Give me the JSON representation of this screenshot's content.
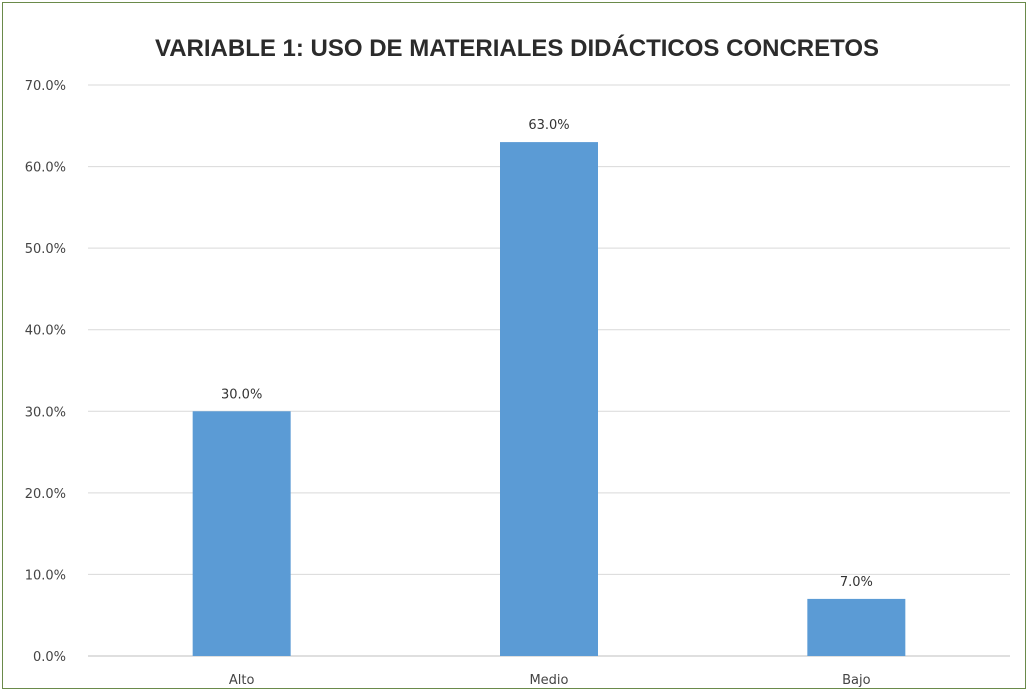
{
  "chart_data": {
    "type": "bar",
    "title": "VARIABLE 1: USO DE MATERIALES DIDÁCTICOS CONCRETOS",
    "xlabel": "",
    "ylabel": "",
    "categories": [
      "Alto",
      "Medio",
      "Bajo"
    ],
    "values": [
      30.0,
      63.0,
      7.0
    ],
    "data_labels": [
      "30.0%",
      "63.0%",
      "7.0%"
    ],
    "y_ticks": [
      "0.0%",
      "10.0%",
      "20.0%",
      "30.0%",
      "40.0%",
      "50.0%",
      "60.0%",
      "70.0%"
    ],
    "ylim": [
      0,
      70
    ],
    "grid": true,
    "legend": "none",
    "colors": {
      "bar": "#5b9bd5",
      "frame_border": "#6a8a4a",
      "gridline": "#d9d9d9"
    }
  }
}
